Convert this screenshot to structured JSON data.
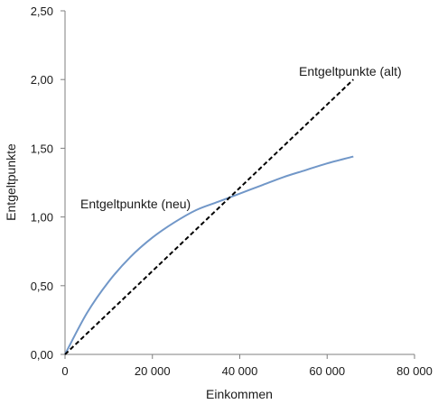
{
  "chart_data": {
    "type": "line",
    "xlabel": "Einkommen",
    "ylabel": "Entgeltpunkte",
    "xlim": [
      0,
      80000
    ],
    "ylim": [
      0,
      2.5
    ],
    "x_ticks": [
      0,
      20000,
      40000,
      60000,
      80000
    ],
    "x_tick_labels": [
      "0",
      "20 000",
      "40 000",
      "60 000",
      "80 000"
    ],
    "y_ticks": [
      0,
      0.5,
      1.0,
      1.5,
      2.0,
      2.5
    ],
    "y_tick_labels": [
      "0,00",
      "0,50",
      "1,00",
      "1,50",
      "2,00",
      "2,50"
    ],
    "grid": false,
    "legend": "none",
    "series": [
      {
        "name": "Entgeltpunkte (neu)",
        "style": "solid",
        "color": "#7197c8",
        "x": [
          0,
          5000,
          10000,
          15000,
          20000,
          25000,
          30000,
          35000,
          40000,
          45000,
          50000,
          55000,
          60000,
          66000
        ],
        "y": [
          0.0,
          0.3,
          0.53,
          0.71,
          0.85,
          0.96,
          1.05,
          1.11,
          1.17,
          1.23,
          1.29,
          1.34,
          1.39,
          1.44
        ]
      },
      {
        "name": "Entgeltpunkte (alt)",
        "style": "dashed",
        "color": "#000000",
        "x": [
          0,
          66000
        ],
        "y": [
          0.0,
          2.0
        ]
      }
    ],
    "annotations": [
      {
        "text": "Entgeltpunkte (alt)",
        "series": "Entgeltpunkte (alt)"
      },
      {
        "text": "Entgeltpunkte (neu)",
        "series": "Entgeltpunkte (neu)"
      }
    ]
  }
}
